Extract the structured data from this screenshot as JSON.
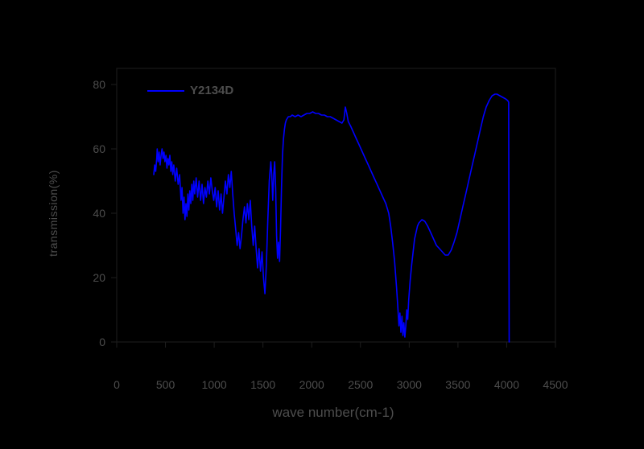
{
  "colors": {
    "background": "#000000",
    "text": "#4d4d4d",
    "axis": "#1e1e1e",
    "line": "#0000ff"
  },
  "chart_data": {
    "type": "line",
    "title": "",
    "xlabel": "wave number(cm-1)",
    "ylabel": "transmission(%)",
    "xlim": [
      0,
      4500
    ],
    "ylim": [
      0,
      85
    ],
    "x_ticks": [
      0,
      500,
      1000,
      1500,
      2000,
      2500,
      3000,
      3500,
      4000,
      4500
    ],
    "y_ticks": [
      0,
      20,
      40,
      60,
      80
    ],
    "grid": false,
    "legend_position": "top-left",
    "series": [
      {
        "name": "Y2134D",
        "color": "#0000ff",
        "x": [
          380,
          390,
          400,
          410,
          415,
          425,
          435,
          445,
          455,
          465,
          475,
          485,
          495,
          505,
          515,
          525,
          535,
          545,
          555,
          565,
          575,
          585,
          600,
          615,
          630,
          645,
          660,
          670,
          680,
          690,
          700,
          710,
          720,
          730,
          740,
          750,
          760,
          770,
          780,
          790,
          800,
          815,
          830,
          845,
          860,
          875,
          890,
          905,
          920,
          935,
          950,
          965,
          980,
          995,
          1010,
          1025,
          1040,
          1055,
          1070,
          1085,
          1100,
          1115,
          1130,
          1145,
          1160,
          1175,
          1190,
          1205,
          1220,
          1235,
          1250,
          1265,
          1280,
          1295,
          1310,
          1325,
          1340,
          1355,
          1370,
          1385,
          1400,
          1415,
          1430,
          1445,
          1460,
          1475,
          1490,
          1505,
          1520,
          1535,
          1550,
          1565,
          1580,
          1590,
          1600,
          1610,
          1620,
          1630,
          1640,
          1650,
          1660,
          1670,
          1680,
          1690,
          1700,
          1710,
          1720,
          1730,
          1740,
          1760,
          1780,
          1800,
          1830,
          1860,
          1890,
          1920,
          1950,
          1980,
          2010,
          2040,
          2070,
          2100,
          2130,
          2160,
          2190,
          2220,
          2250,
          2280,
          2310,
          2330,
          2345,
          2360,
          2375,
          2400,
          2430,
          2460,
          2490,
          2520,
          2550,
          2580,
          2610,
          2640,
          2670,
          2700,
          2730,
          2760,
          2790,
          2810,
          2830,
          2850,
          2870,
          2885,
          2895,
          2905,
          2915,
          2925,
          2935,
          2945,
          2955,
          2965,
          2975,
          2985,
          2995,
          3010,
          3025,
          3040,
          3055,
          3070,
          3085,
          3100,
          3130,
          3160,
          3190,
          3220,
          3250,
          3280,
          3310,
          3340,
          3370,
          3400,
          3430,
          3460,
          3490,
          3520,
          3550,
          3580,
          3610,
          3640,
          3670,
          3700,
          3730,
          3760,
          3790,
          3820,
          3850,
          3880,
          3900,
          3930,
          3960,
          3990,
          4010,
          4020,
          4025
        ],
        "y": [
          52,
          55,
          53,
          57,
          60,
          56,
          59,
          55,
          58,
          60,
          57,
          59,
          56,
          58,
          54,
          57,
          55,
          58,
          53,
          56,
          52,
          55,
          50,
          54,
          49,
          52,
          44,
          48,
          40,
          45,
          38,
          43,
          39,
          46,
          41,
          47,
          43,
          49,
          44,
          50,
          46,
          51,
          45,
          50,
          44,
          49,
          43,
          48,
          45,
          50,
          46,
          51,
          47,
          44,
          48,
          42,
          47,
          41,
          46,
          40,
          45,
          50,
          46,
          52,
          48,
          53,
          46,
          40,
          35,
          30,
          34,
          29,
          33,
          38,
          42,
          37,
          43,
          38,
          44,
          36,
          30,
          36,
          29,
          23,
          29,
          22,
          28,
          20,
          15,
          24,
          38,
          50,
          56,
          52,
          44,
          52,
          56,
          48,
          33,
          26,
          31,
          25,
          35,
          48,
          58,
          63,
          66,
          68,
          69,
          70,
          70,
          70.5,
          70,
          70.5,
          70,
          70.5,
          71,
          71,
          71.5,
          71,
          71,
          70.5,
          70.5,
          70,
          70,
          69.5,
          69,
          68.5,
          68,
          69,
          73,
          71,
          68.5,
          67,
          65,
          63,
          61,
          59,
          57,
          55,
          53,
          51,
          49,
          47,
          45,
          43,
          40,
          36,
          31,
          25,
          17,
          10,
          5,
          9,
          3,
          8,
          2,
          6,
          1.5,
          5,
          10,
          7,
          13,
          19,
          24,
          28,
          32,
          34,
          36,
          37,
          38,
          37.5,
          36,
          34,
          32,
          30,
          29,
          28,
          27,
          27,
          28.5,
          31,
          34,
          38,
          42,
          46,
          50,
          54,
          58,
          62,
          66,
          70,
          73,
          75,
          76.5,
          77,
          77,
          76.5,
          76,
          75.5,
          75,
          74.5,
          0
        ]
      }
    ]
  }
}
